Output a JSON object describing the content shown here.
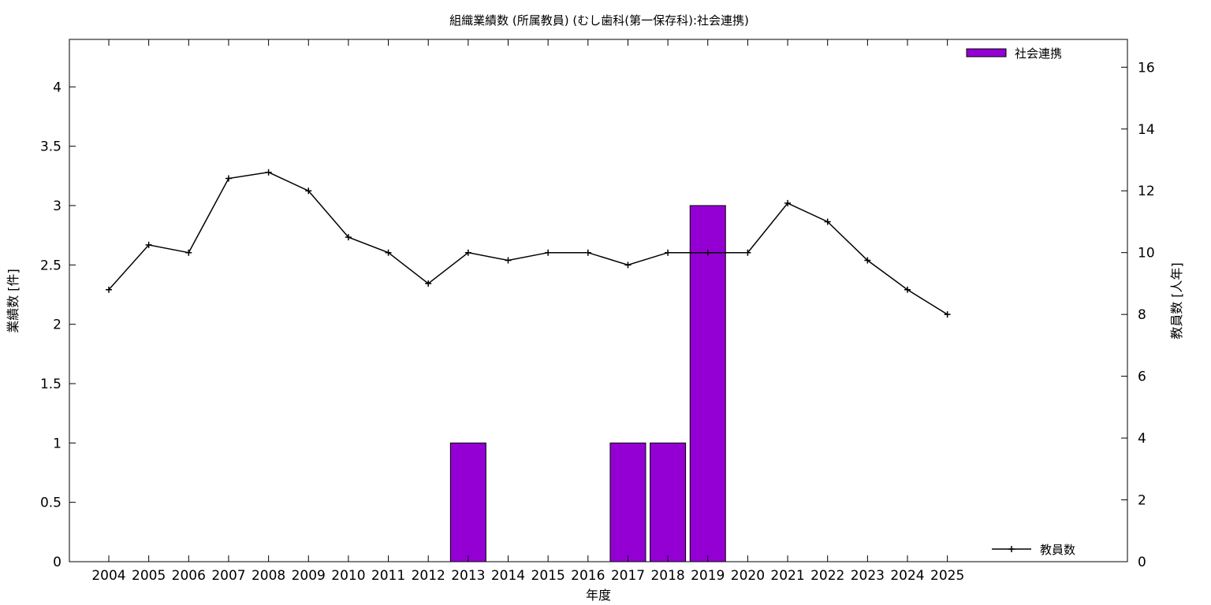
{
  "chart_data": {
    "type": "bar",
    "title": "組織業績数 (所属教員) (むし歯科(第一保存科):社会連携)",
    "xlabel": "年度",
    "ylabel": "業績数 [件]",
    "y2label": "教員数 [人年]",
    "categories": [
      "2004",
      "2005",
      "2006",
      "2007",
      "2008",
      "2009",
      "2010",
      "2011",
      "2012",
      "2013",
      "2014",
      "2015",
      "2016",
      "2017",
      "2018",
      "2019",
      "2020",
      "2021",
      "2022",
      "2023",
      "2024",
      "2025"
    ],
    "ylim": [
      0,
      4.4
    ],
    "y_ticks": [
      "0",
      "0.5",
      "1",
      "1.5",
      "2",
      "2.5",
      "3",
      "3.5",
      "4"
    ],
    "y2lim": [
      0,
      16.9
    ],
    "y2_ticks": [
      "0",
      "2",
      "4",
      "6",
      "8",
      "10",
      "12",
      "14",
      "16"
    ],
    "grid": false,
    "series": [
      {
        "name": "社会連携",
        "type": "bar",
        "axis": "left",
        "color": "#9400d3",
        "values": [
          0,
          0,
          0,
          0,
          0,
          0,
          0,
          0,
          0,
          1,
          0,
          0,
          0,
          1,
          1,
          3,
          0,
          0,
          0,
          0,
          0,
          0
        ]
      },
      {
        "name": "教員数",
        "type": "line",
        "axis": "right",
        "color": "#000000",
        "marker": "plus",
        "values": [
          8.8,
          10.25,
          10.0,
          12.4,
          12.6,
          12.0,
          10.5,
          10.0,
          9.0,
          10.0,
          9.75,
          10.0,
          10.0,
          9.6,
          10.0,
          10.0,
          10.0,
          11.6,
          11.0,
          9.75,
          8.8,
          8.0
        ]
      }
    ],
    "legend": [
      {
        "label": "社会連携",
        "position": "top-right"
      },
      {
        "label": "教員数",
        "position": "bottom-right"
      }
    ]
  }
}
